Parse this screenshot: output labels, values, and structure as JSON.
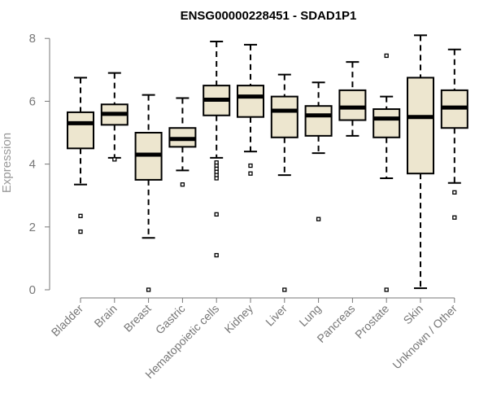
{
  "chart_data": {
    "type": "boxplot",
    "title": "ENSG00000228451 - SDAD1P1",
    "xlabel": "",
    "ylabel": "Expression",
    "ylim": [
      0,
      8.3
    ],
    "yticks": [
      "0",
      "2",
      "4",
      "6",
      "8"
    ],
    "box_fill": "#ede6cf",
    "line_color": "#000000",
    "axis_color": "#777777",
    "categories": [
      "Bladder",
      "Brain",
      "Breast",
      "Gastric",
      "Hematopoietic cells",
      "Kidney",
      "Liver",
      "Lung",
      "Pancreas",
      "Prostate",
      "Skin",
      "Unknown / Other"
    ],
    "boxes": [
      {
        "name": "Bladder",
        "low": 3.35,
        "q1": 4.5,
        "median": 5.3,
        "q3": 5.65,
        "high": 6.75,
        "outliers": [
          2.35,
          1.85
        ]
      },
      {
        "name": "Brain",
        "low": 4.2,
        "q1": 5.25,
        "median": 5.6,
        "q3": 5.9,
        "high": 6.9,
        "outliers": [
          4.15
        ]
      },
      {
        "name": "Breast",
        "low": 1.65,
        "q1": 3.5,
        "median": 4.3,
        "q3": 5.0,
        "high": 6.2,
        "outliers": [
          0
        ]
      },
      {
        "name": "Gastric",
        "low": 3.8,
        "q1": 4.55,
        "median": 4.8,
        "q3": 5.15,
        "high": 6.1,
        "outliers": [
          3.35
        ]
      },
      {
        "name": "Hematopoietic cells",
        "low": 4.2,
        "q1": 5.55,
        "median": 6.05,
        "q3": 6.5,
        "high": 7.9,
        "outliers": [
          4.05,
          3.95,
          3.85,
          3.75,
          3.65,
          3.55,
          2.4,
          1.1
        ]
      },
      {
        "name": "Kidney",
        "low": 4.4,
        "q1": 5.5,
        "median": 6.15,
        "q3": 6.5,
        "high": 7.8,
        "outliers": [
          3.95,
          3.7
        ]
      },
      {
        "name": "Liver",
        "low": 3.65,
        "q1": 4.85,
        "median": 5.7,
        "q3": 6.15,
        "high": 6.85,
        "outliers": [
          0
        ]
      },
      {
        "name": "Lung",
        "low": 4.35,
        "q1": 4.9,
        "median": 5.55,
        "q3": 5.85,
        "high": 6.6,
        "outliers": [
          2.25
        ]
      },
      {
        "name": "Pancreas",
        "low": 4.9,
        "q1": 5.4,
        "median": 5.8,
        "q3": 6.35,
        "high": 7.25,
        "outliers": []
      },
      {
        "name": "Prostate",
        "low": 3.55,
        "q1": 4.85,
        "median": 5.45,
        "q3": 5.75,
        "high": 6.15,
        "outliers": [
          7.45,
          0
        ]
      },
      {
        "name": "Skin",
        "low": 0.05,
        "q1": 3.7,
        "median": 5.5,
        "q3": 6.75,
        "high": 8.1,
        "outliers": []
      },
      {
        "name": "Unknown / Other",
        "low": 3.4,
        "q1": 5.15,
        "median": 5.8,
        "q3": 6.35,
        "high": 7.65,
        "outliers": [
          3.1,
          2.3
        ]
      }
    ]
  }
}
